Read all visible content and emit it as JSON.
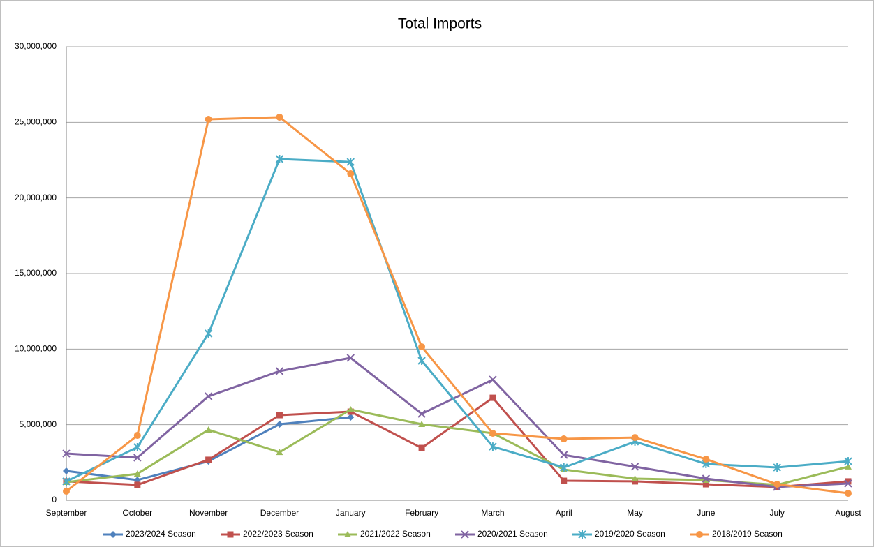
{
  "chart_data": {
    "type": "line",
    "title": "Total Imports",
    "categories": [
      "September",
      "October",
      "November",
      "December",
      "January",
      "February",
      "March",
      "April",
      "May",
      "June",
      "July",
      "August"
    ],
    "series": [
      {
        "name": "2023/2024 Season",
        "color": "#4f81bd",
        "marker": "diamond",
        "values": [
          1940000,
          1340000,
          2580000,
          5030000,
          5490000,
          null,
          null,
          null,
          null,
          null,
          null,
          null
        ]
      },
      {
        "name": "2022/2023 Season",
        "color": "#c0504d",
        "marker": "square",
        "values": [
          1250000,
          1020000,
          2680000,
          5630000,
          5860000,
          3460000,
          6780000,
          1290000,
          1250000,
          1060000,
          880000,
          1250000
        ]
      },
      {
        "name": "2021/2022 Season",
        "color": "#9bbb59",
        "marker": "triangle",
        "values": [
          1200000,
          1750000,
          4660000,
          3180000,
          6000000,
          5030000,
          4430000,
          2030000,
          1430000,
          1340000,
          1020000,
          2220000
        ]
      },
      {
        "name": "2020/2021 Season",
        "color": "#8064a2",
        "marker": "x",
        "values": [
          3090000,
          2820000,
          6880000,
          8540000,
          9420000,
          5720000,
          7980000,
          3000000,
          2220000,
          1430000,
          880000,
          1110000
        ]
      },
      {
        "name": "2019/2020 Season",
        "color": "#4bacc6",
        "marker": "star",
        "values": [
          1250000,
          3510000,
          11030000,
          22570000,
          22380000,
          9230000,
          3550000,
          2170000,
          3880000,
          2400000,
          2170000,
          2580000
        ]
      },
      {
        "name": "2018/2019 Season",
        "color": "#f79646",
        "marker": "circle",
        "values": [
          600000,
          4290000,
          25200000,
          25340000,
          21600000,
          10150000,
          4430000,
          4060000,
          4150000,
          2720000,
          1060000,
          460000
        ]
      }
    ],
    "ylim": [
      0,
      30000000
    ],
    "yticks": [
      0,
      {
        "value": 5000000,
        "label": "5,000,000"
      },
      {
        "value": 10000000,
        "label": "10,000,000"
      },
      {
        "value": 15000000,
        "label": "15,000,000"
      },
      {
        "value": 20000000,
        "label": "20,000,000"
      },
      {
        "value": 25000000,
        "label": "25,000,000"
      },
      {
        "value": 30000000,
        "label": "30,000,000"
      }
    ],
    "grid": true,
    "legend": "bottom"
  }
}
